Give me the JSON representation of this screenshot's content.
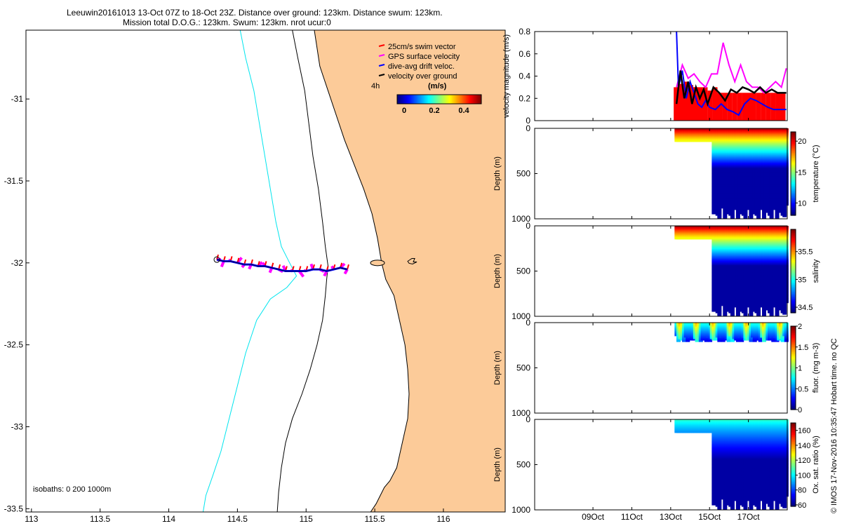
{
  "header": {
    "line1": "Leeuwin20161013 13-Oct 07Z to 18-Oct 23Z. Distance over ground: 123km. Distance swum: 123km.",
    "line2": "Mission total D.O.G.: 123km. Swum: 123km. nrot ucur:0"
  },
  "legend": {
    "items": [
      {
        "label": "25cm/s swim vector",
        "color": "#ff0000"
      },
      {
        "label": "GPS surface velocity",
        "color": "#ff00ff"
      },
      {
        "label": "dive-avg drift veloc.",
        "color": "#0000ff"
      },
      {
        "label": "velocity over ground",
        "color": "#000000"
      }
    ],
    "time_label": "4h",
    "colorbar_title": "(m/s)",
    "colorbar_ticks": [
      "0",
      "0.2",
      "0.4"
    ]
  },
  "isobaths_label": "isobaths: 0   200  1000m",
  "timestamp": "© IMOS 17-Nov-2016 10:35:47 Hobart time. no QC",
  "colors": {
    "land": "#fccb99",
    "isobath_200": "#000000",
    "isobath_1000": "#00e5ee",
    "swim_vector": "#ff0000",
    "gps_velocity": "#ff00ff",
    "drift_velocity": "#0000ff",
    "velocity_ground": "#000000"
  },
  "chart_data": [
    {
      "type": "line",
      "name": "glider track map",
      "xlabel": "",
      "ylabel": "",
      "xlim": [
        112.96,
        116.45
      ],
      "ylim": [
        -33.52,
        -30.58
      ],
      "xticks": [
        113,
        113.5,
        114,
        114.5,
        115,
        115.5,
        116
      ],
      "yticks": [
        -31,
        -31.5,
        -32,
        -32.5,
        -33,
        -33.5
      ],
      "coastline_lon": [
        115.06,
        115.1,
        115.16,
        115.22,
        115.28,
        115.35,
        115.42,
        115.48,
        115.52,
        115.55,
        115.58,
        115.64,
        115.68,
        115.72,
        115.74,
        115.75,
        115.74,
        115.7,
        115.66,
        115.61,
        115.57,
        115.54,
        115.51,
        115.47
      ],
      "coastline_lat": [
        -30.58,
        -30.8,
        -30.95,
        -31.1,
        -31.25,
        -31.4,
        -31.55,
        -31.7,
        -31.85,
        -32.0,
        -32.1,
        -32.2,
        -32.35,
        -32.5,
        -32.65,
        -32.8,
        -32.95,
        -33.1,
        -33.25,
        -33.33,
        -33.37,
        -33.42,
        -33.47,
        -33.52
      ],
      "isobath_200_lon": [
        114.9,
        114.94,
        114.99,
        115.02,
        115.05,
        115.09,
        115.12,
        115.14,
        115.16,
        115.15,
        115.14,
        115.12,
        115.08,
        115.03,
        114.97,
        114.9,
        114.85,
        114.82,
        114.8,
        114.79
      ],
      "isobath_200_lat": [
        -30.58,
        -30.75,
        -30.95,
        -31.15,
        -31.35,
        -31.55,
        -31.75,
        -31.9,
        -32.02,
        -32.1,
        -32.2,
        -32.35,
        -32.5,
        -32.65,
        -32.8,
        -32.95,
        -33.1,
        -33.25,
        -33.4,
        -33.52
      ],
      "isobath_1000_lon": [
        114.52,
        114.56,
        114.62,
        114.66,
        114.7,
        114.74,
        114.78,
        114.82,
        114.88,
        114.93,
        114.86,
        114.74,
        114.64,
        114.56,
        114.5,
        114.44,
        114.38,
        114.32,
        114.27,
        114.25
      ],
      "isobath_1000_lat": [
        -30.58,
        -30.75,
        -30.95,
        -31.15,
        -31.35,
        -31.55,
        -31.75,
        -31.9,
        -32.0,
        -32.08,
        -32.15,
        -32.22,
        -32.35,
        -32.55,
        -32.75,
        -32.95,
        -33.15,
        -33.3,
        -33.42,
        -33.52
      ],
      "track_lon": [
        114.35,
        114.4,
        114.45,
        114.5,
        114.55,
        114.6,
        114.65,
        114.7,
        114.75,
        114.8,
        114.85,
        114.9,
        114.95,
        115.0,
        115.05,
        115.1,
        115.15,
        115.2,
        115.25,
        115.3
      ],
      "track_lat": [
        -31.98,
        -31.99,
        -31.99,
        -32.0,
        -32.01,
        -32.01,
        -32.02,
        -32.02,
        -32.03,
        -32.04,
        -32.05,
        -32.05,
        -32.05,
        -32.05,
        -32.04,
        -32.04,
        -32.05,
        -32.04,
        -32.03,
        -32.04
      ]
    },
    {
      "type": "line",
      "name": "velocity magnitude",
      "ylabel": "velocity magnitude (m/s)",
      "ylim": [
        0,
        0.8
      ],
      "yticks": [
        0,
        0.2,
        0.4,
        0.6,
        0.8
      ],
      "xlim": [
        6.0,
        19.0
      ],
      "xticks": [
        9,
        11,
        13,
        15,
        17
      ],
      "xticklabels": [
        "09Oct",
        "11Oct",
        "13Oct",
        "15Oct",
        "17Oct"
      ],
      "bar_days": [
        13.3,
        13.55,
        13.8,
        14.05,
        14.3,
        14.55,
        14.8,
        15.05,
        15.3,
        15.55,
        15.8,
        16.05,
        16.3,
        16.55,
        16.8,
        17.05,
        17.3,
        17.55,
        17.8,
        18.05,
        18.3,
        18.55,
        18.8
      ],
      "bar_values": [
        0.3,
        0.33,
        0.35,
        0.32,
        0.3,
        0.28,
        0.25,
        0.27,
        0.3,
        0.25,
        0.25,
        0.25,
        0.25,
        0.25,
        0.25,
        0.25,
        0.25,
        0.25,
        0.25,
        0.25,
        0.25,
        0.25,
        0.25
      ],
      "series": [
        {
          "name": "GPS surface velocity",
          "x": [
            13.3,
            13.6,
            13.9,
            14.2,
            14.5,
            14.8,
            15.1,
            15.4,
            15.7,
            16.0,
            16.3,
            16.6,
            16.9,
            17.2,
            17.5,
            17.8,
            18.1,
            18.4,
            18.7,
            18.95
          ],
          "y": [
            0.3,
            0.5,
            0.38,
            0.42,
            0.35,
            0.3,
            0.42,
            0.42,
            0.7,
            0.5,
            0.35,
            0.5,
            0.35,
            0.3,
            0.3,
            0.25,
            0.3,
            0.35,
            0.3,
            0.47
          ]
        },
        {
          "name": "dive-avg drift veloc.",
          "x": [
            13.3,
            13.4,
            13.6,
            13.8,
            14.0,
            14.2,
            14.4,
            14.6,
            14.8,
            15.0,
            15.3,
            15.6,
            15.9,
            16.2,
            16.5,
            16.8,
            17.1,
            17.4,
            17.7,
            18.0,
            18.3,
            18.6,
            18.95
          ],
          "y": [
            0.8,
            0.3,
            0.45,
            0.2,
            0.35,
            0.25,
            0.15,
            0.12,
            0.18,
            0.12,
            0.1,
            0.15,
            0.1,
            0.08,
            0.05,
            0.15,
            0.2,
            0.18,
            0.15,
            0.12,
            0.1,
            0.1,
            0.1
          ]
        },
        {
          "name": "velocity over ground",
          "x": [
            13.3,
            13.5,
            13.7,
            13.9,
            14.1,
            14.3,
            14.5,
            14.7,
            14.9,
            15.2,
            15.5,
            15.8,
            16.1,
            16.4,
            16.7,
            17.0,
            17.3,
            17.6,
            17.9,
            18.2,
            18.5,
            18.95
          ],
          "y": [
            0.15,
            0.45,
            0.2,
            0.35,
            0.15,
            0.3,
            0.2,
            0.28,
            0.15,
            0.3,
            0.25,
            0.18,
            0.28,
            0.25,
            0.3,
            0.28,
            0.25,
            0.3,
            0.25,
            0.28,
            0.25,
            0.25
          ]
        }
      ]
    },
    {
      "type": "heatmap",
      "name": "temperature section",
      "ylabel": "Depth (m)",
      "colorbar_label": "temperature (°C)",
      "ylim": [
        1000,
        0
      ],
      "yticks": [
        0,
        500,
        1000
      ],
      "clim": [
        8,
        21.5
      ],
      "colorbar_ticks": [
        10,
        15,
        20
      ],
      "xlim": [
        6.0,
        19.0
      ],
      "xticks": [
        9,
        11,
        13,
        15,
        17
      ],
      "xticklabels": [
        "09Oct",
        "11Oct",
        "13Oct",
        "15Oct",
        "17Oct"
      ],
      "profile_start_day": 13.3,
      "deep_start_day": 15.2,
      "profile_end_day": 18.95,
      "max_depth_shallow": 130,
      "max_depth_deep": 990,
      "surface_value": 21,
      "deep_value": 8.5
    },
    {
      "type": "heatmap",
      "name": "salinity section",
      "ylabel": "Depth (m)",
      "colorbar_label": "salinity",
      "ylim": [
        1000,
        0
      ],
      "yticks": [
        0,
        500,
        1000
      ],
      "clim": [
        34.4,
        35.9
      ],
      "colorbar_ticks": [
        34.5,
        35,
        35.5
      ],
      "xlim": [
        6.0,
        19.0
      ],
      "xticks": [
        9,
        11,
        13,
        15,
        17
      ],
      "xticklabels": [
        "09Oct",
        "11Oct",
        "13Oct",
        "15Oct",
        "17Oct"
      ],
      "profile_start_day": 13.3,
      "deep_start_day": 15.2,
      "profile_end_day": 18.95,
      "max_depth_shallow": 130,
      "max_depth_deep": 990,
      "surface_value": 35.85,
      "deep_value": 34.45
    },
    {
      "type": "heatmap",
      "name": "fluorescence section",
      "ylabel": "Depth (m)",
      "colorbar_label": "fluor. (mg m-3)",
      "ylim": [
        1000,
        0
      ],
      "yticks": [
        0,
        500,
        1000
      ],
      "clim": [
        0,
        2
      ],
      "colorbar_ticks": [
        0,
        0.5,
        1,
        1.5,
        2
      ],
      "xlim": [
        6.0,
        19.0
      ],
      "xticks": [
        9,
        11,
        13,
        15,
        17
      ],
      "xticklabels": [
        "09Oct",
        "11Oct",
        "13Oct",
        "15Oct",
        "17Oct"
      ],
      "profile_start_day": 13.3,
      "profile_end_day": 18.95,
      "max_depth": 200,
      "surface_value": 0.8,
      "deep_value": 0.2
    },
    {
      "type": "heatmap",
      "name": "oxygen saturation section",
      "ylabel": "Depth (m)",
      "colorbar_label": "Ox. sat. ratio (%)",
      "ylim": [
        1000,
        0
      ],
      "yticks": [
        0,
        500,
        1000
      ],
      "clim": [
        58,
        170
      ],
      "colorbar_ticks": [
        60,
        80,
        100,
        120,
        140,
        160
      ],
      "xlim": [
        6.0,
        19.0
      ],
      "xticks": [
        9,
        11,
        13,
        15,
        17
      ],
      "xticklabels": [
        "09Oct",
        "11Oct",
        "13Oct",
        "15Oct",
        "17Oct"
      ],
      "profile_start_day": 13.3,
      "deep_start_day": 15.2,
      "profile_end_day": 18.95,
      "max_depth_shallow": 130,
      "max_depth_deep": 990,
      "surface_value": 105,
      "deep_value": 62
    }
  ]
}
